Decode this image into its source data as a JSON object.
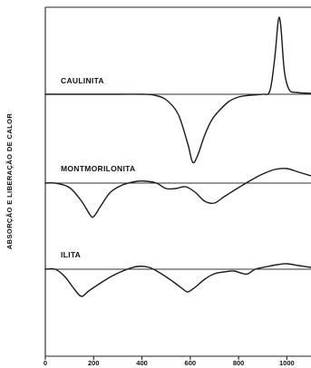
{
  "chart_data": {
    "type": "line",
    "title": "",
    "xlabel": "",
    "ylabel": "ABSORÇÃO E LIBERAÇÃO DE CALOR",
    "xlim": [
      0,
      1100
    ],
    "x_ticks": [
      0,
      200,
      400,
      600,
      800,
      1000
    ],
    "grid": false,
    "series": [
      {
        "name": "CAULINITA",
        "points": [
          [
            0,
            0
          ],
          [
            100,
            0
          ],
          [
            200,
            0
          ],
          [
            300,
            0
          ],
          [
            400,
            0
          ],
          [
            450,
            -1
          ],
          [
            500,
            -6
          ],
          [
            550,
            -22
          ],
          [
            590,
            -55
          ],
          [
            610,
            -75
          ],
          [
            630,
            -68
          ],
          [
            660,
            -45
          ],
          [
            690,
            -28
          ],
          [
            720,
            -18
          ],
          [
            760,
            -8
          ],
          [
            800,
            -3
          ],
          [
            850,
            -1
          ],
          [
            900,
            0
          ],
          [
            930,
            4
          ],
          [
            950,
            40
          ],
          [
            965,
            82
          ],
          [
            975,
            75
          ],
          [
            990,
            25
          ],
          [
            1010,
            5
          ],
          [
            1040,
            2
          ],
          [
            1100,
            1
          ]
        ]
      },
      {
        "name": "MONTMORILONITA",
        "points": [
          [
            0,
            0
          ],
          [
            40,
            0
          ],
          [
            100,
            -5
          ],
          [
            150,
            -20
          ],
          [
            185,
            -35
          ],
          [
            200,
            -37
          ],
          [
            230,
            -25
          ],
          [
            270,
            -10
          ],
          [
            320,
            -2
          ],
          [
            380,
            2
          ],
          [
            420,
            2
          ],
          [
            460,
            0
          ],
          [
            500,
            -6
          ],
          [
            540,
            -6
          ],
          [
            580,
            -4
          ],
          [
            620,
            -10
          ],
          [
            660,
            -20
          ],
          [
            700,
            -22
          ],
          [
            740,
            -15
          ],
          [
            800,
            -5
          ],
          [
            850,
            3
          ],
          [
            900,
            10
          ],
          [
            950,
            15
          ],
          [
            1000,
            16
          ],
          [
            1050,
            12
          ],
          [
            1100,
            8
          ]
        ]
      },
      {
        "name": "ILITA",
        "points": [
          [
            0,
            0
          ],
          [
            40,
            0
          ],
          [
            80,
            -8
          ],
          [
            120,
            -22
          ],
          [
            150,
            -30
          ],
          [
            180,
            -24
          ],
          [
            230,
            -15
          ],
          [
            280,
            -7
          ],
          [
            330,
            -1
          ],
          [
            380,
            3
          ],
          [
            430,
            2
          ],
          [
            480,
            -5
          ],
          [
            530,
            -14
          ],
          [
            570,
            -22
          ],
          [
            590,
            -25
          ],
          [
            620,
            -20
          ],
          [
            660,
            -11
          ],
          [
            700,
            -5
          ],
          [
            740,
            -3
          ],
          [
            780,
            -2
          ],
          [
            820,
            -5
          ],
          [
            840,
            -5
          ],
          [
            870,
            0
          ],
          [
            920,
            3
          ],
          [
            960,
            5
          ],
          [
            1000,
            6
          ],
          [
            1050,
            4
          ],
          [
            1100,
            2
          ]
        ]
      }
    ]
  }
}
